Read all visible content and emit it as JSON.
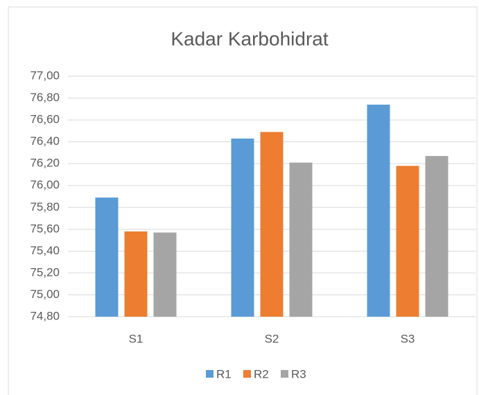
{
  "chart_data": {
    "type": "bar",
    "title": "Kadar Karbohidrat",
    "categories": [
      "S1",
      "S2",
      "S3"
    ],
    "series": [
      {
        "name": "R1",
        "color": "#5b9bd5",
        "values": [
          75.89,
          76.43,
          76.74
        ]
      },
      {
        "name": "R2",
        "color": "#ed7d31",
        "values": [
          75.58,
          76.49,
          76.18
        ]
      },
      {
        "name": "R3",
        "color": "#a5a5a5",
        "values": [
          75.57,
          76.21,
          76.27
        ]
      }
    ],
    "ylim": [
      74.8,
      77.0
    ],
    "yticks": [
      {
        "value": 74.8,
        "label": "74,80"
      },
      {
        "value": 75.0,
        "label": "75,00"
      },
      {
        "value": 75.2,
        "label": "75,20"
      },
      {
        "value": 75.4,
        "label": "75,40"
      },
      {
        "value": 75.6,
        "label": "75,60"
      },
      {
        "value": 75.8,
        "label": "75,80"
      },
      {
        "value": 76.0,
        "label": "76,00"
      },
      {
        "value": 76.2,
        "label": "76,20"
      },
      {
        "value": 76.4,
        "label": "76,40"
      },
      {
        "value": 76.6,
        "label": "76,60"
      },
      {
        "value": 76.8,
        "label": "76,80"
      },
      {
        "value": 77.0,
        "label": "77,00"
      }
    ],
    "grid": true,
    "legend": "bottom"
  }
}
